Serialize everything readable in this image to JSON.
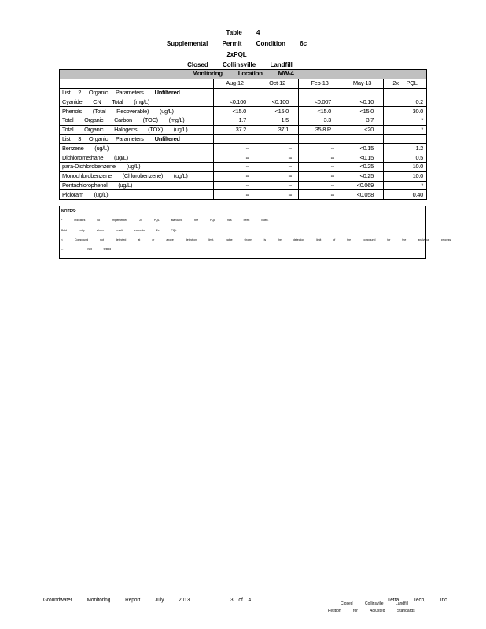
{
  "header": {
    "line1": "Table 4",
    "line2": "Supplemental Permit Condition 6c",
    "line3": "2xPQL",
    "line4": "Closed Collinsville Landfill"
  },
  "table": {
    "location": "Monitoring Location MW-4",
    "columns": [
      "",
      "Aug-12",
      "Oct-12",
      "Feb-13",
      "May-13",
      "2x PQL"
    ],
    "sections": [
      {
        "title": "List 2 Organic Parameters",
        "qualifier": "Unfiltered",
        "rows": [
          {
            "param": "Cyanide CN Total (mg/L)",
            "values": [
              "<0.100",
              "<0.100",
              "<0.007",
              "<0.10"
            ],
            "pql": "0.2"
          },
          {
            "param": "Phenols (Total Recoverable) (ug/L)",
            "values": [
              "<15.0",
              "<15.0",
              "<15.0",
              "<15.0"
            ],
            "pql": "30.0"
          },
          {
            "param": "Total Organic Carbon (TOC) (mg/L)",
            "values": [
              "1.7",
              "1.5",
              "3.3",
              "3.7"
            ],
            "pql": "*"
          },
          {
            "param": "Total Organic Halogens (TOX) (ug/L)",
            "values": [
              "37.2",
              "37.1",
              "35.8   R",
              "<20"
            ],
            "pql": "*"
          }
        ]
      },
      {
        "title": "List 3 Organic Parameters",
        "qualifier": "Unfiltered",
        "rows": [
          {
            "param": "Benzene (ug/L)",
            "values": [
              "--",
              "--",
              "--",
              "<0.15"
            ],
            "pql": "1.2"
          },
          {
            "param": "Dichloromethane (ug/L)",
            "values": [
              "--",
              "--",
              "--",
              "<0.15"
            ],
            "pql": "0.5"
          },
          {
            "param": "para-Dichlorobenzene (ug/L)",
            "values": [
              "--",
              "--",
              "--",
              "<0.25"
            ],
            "pql": "10.0"
          },
          {
            "param": "Monochlorobenzene (Chlorobenzene) (ug/L)",
            "values": [
              "--",
              "--",
              "--",
              "<0.25"
            ],
            "pql": "10.0"
          },
          {
            "param": "Pentachlorophenol (ug/L)",
            "values": [
              "--",
              "--",
              "--",
              "<0.069"
            ],
            "pql": "*"
          },
          {
            "param": "Picloram (ug/L)",
            "values": [
              "--",
              "--",
              "--",
              "<0.058"
            ],
            "pql": "0.40"
          }
        ]
      }
    ]
  },
  "notes": {
    "title": "NOTES:",
    "items": [
      "* Indicates no implemented 2x PQL standard, the PQL has been listed.",
      "Bold entry where result exceeds 2x PQL",
      "< Compound not detected at or above detection limit, value shown is the detection limit of the compound for the analytical process.",
      "-- : Not tested"
    ]
  },
  "footer": {
    "left": "Groundwater Monitoring Report July 2013",
    "page": "3 of 4",
    "company": "Tetra Tech, Inc.",
    "doc_line1": "Closed Collinsville Landfill",
    "doc_line2": "Petition for Adjusted Standards"
  }
}
